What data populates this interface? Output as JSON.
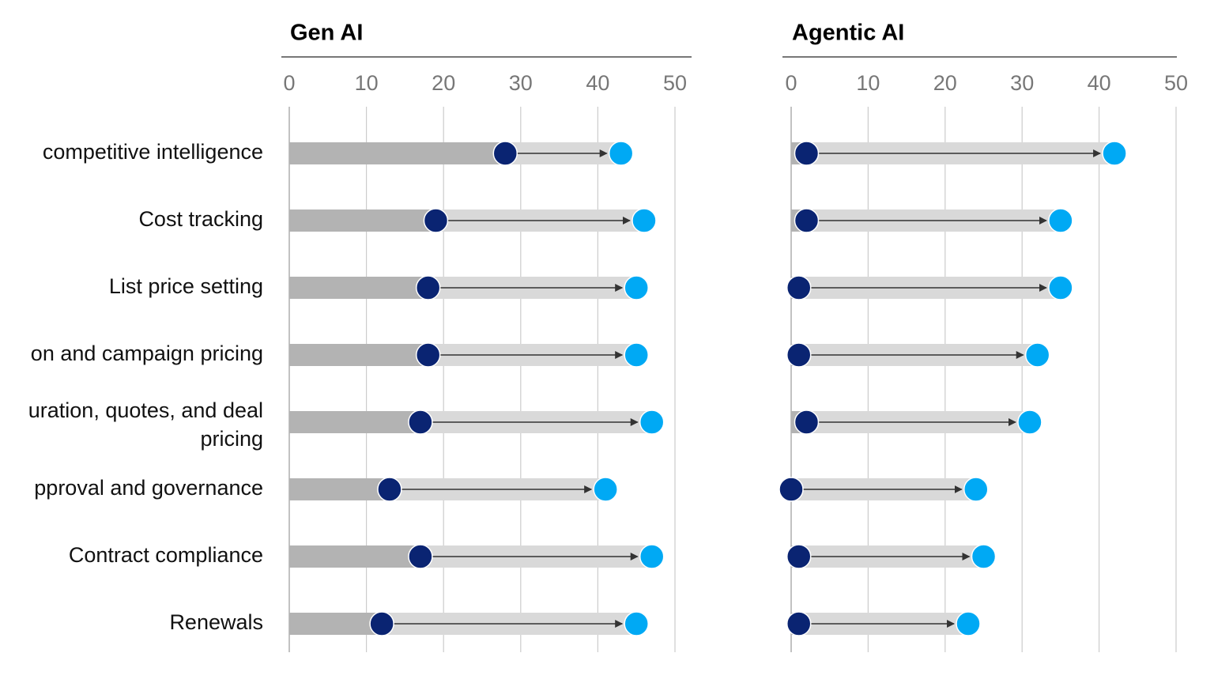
{
  "chart_data": [
    {
      "type": "dumbbell",
      "title": "Gen AI",
      "categories": [
        "competitive intelligence",
        "Cost tracking",
        "List price setting",
        "on and campaign pricing",
        [
          "uration, quotes, and deal",
          "pricing"
        ],
        "pproval and governance",
        "Contract compliance",
        "Renewals"
      ],
      "series": [
        {
          "color": "#0a2472",
          "values": [
            28,
            19,
            18,
            18,
            17,
            13,
            17,
            12
          ]
        },
        {
          "color": "#00a9f4",
          "values": [
            43,
            46,
            45,
            45,
            47,
            41,
            47,
            45
          ]
        }
      ],
      "xlim": [
        0,
        50
      ],
      "xticks": [
        0,
        10,
        20,
        30,
        40,
        50
      ],
      "grid": true
    },
    {
      "type": "dumbbell",
      "title": "Agentic AI",
      "series": [
        {
          "color": "#0a2472",
          "values": [
            2,
            2,
            1,
            1,
            2,
            0,
            1,
            1
          ]
        },
        {
          "color": "#00a9f4",
          "values": [
            42,
            35,
            35,
            32,
            31,
            24,
            25,
            23
          ]
        }
      ],
      "xlim": [
        0,
        50
      ],
      "xticks": [
        0,
        10,
        20,
        30,
        40,
        50
      ],
      "grid": true
    }
  ]
}
